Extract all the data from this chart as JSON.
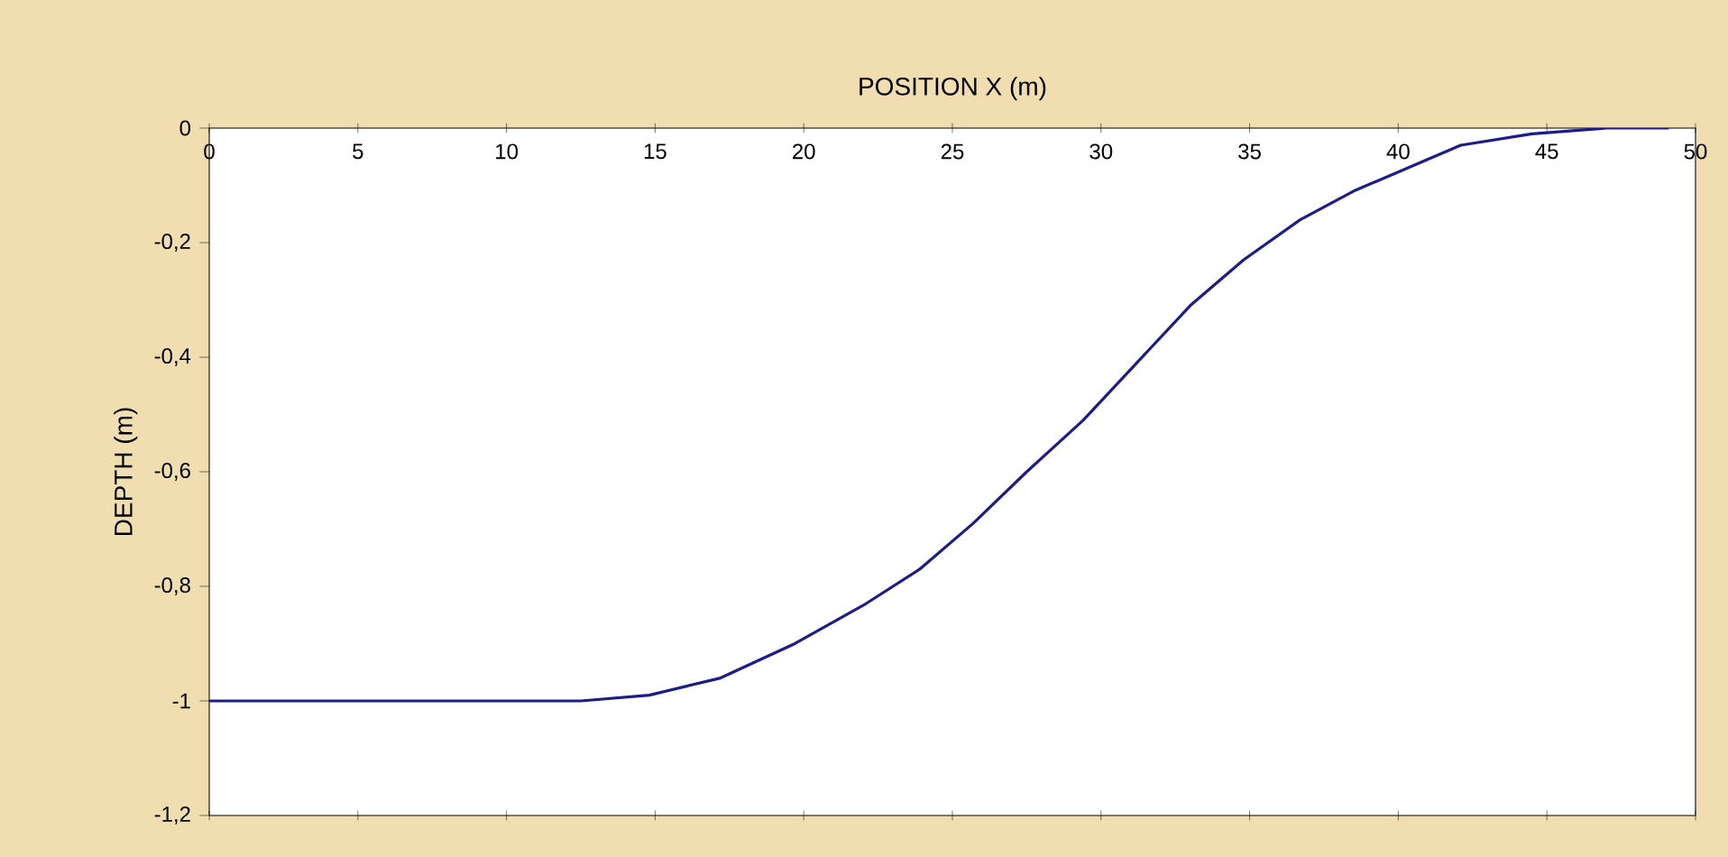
{
  "chart_data": {
    "type": "line",
    "xlabel": "POSITION X (m)",
    "ylabel": "DEPTH (m)",
    "x": [
      0,
      12.5,
      14.8,
      17.2,
      19.7,
      22.1,
      23.9,
      25.7,
      27.5,
      29.4,
      31.2,
      33,
      34.8,
      36.7,
      38.5,
      40.3,
      42.1,
      44.5,
      47,
      49.1
    ],
    "values": [
      -1,
      -1,
      -0.99,
      -0.96,
      -0.9,
      -0.83,
      -0.77,
      -0.69,
      -0.6,
      -0.51,
      -0.41,
      -0.31,
      -0.23,
      -0.16,
      -0.11,
      -0.07,
      -0.03,
      -0.01,
      0,
      0
    ],
    "color": "#1c1c8a",
    "xlim": [
      0,
      50
    ],
    "ylim": [
      -1.2,
      0
    ],
    "xticks": [
      0,
      5,
      10,
      15,
      20,
      25,
      30,
      35,
      40,
      45,
      50
    ],
    "yticks": [
      0,
      {
        "value": -0.2,
        "label": "-0,2"
      },
      {
        "value": -0.4,
        "label": "-0,4"
      },
      {
        "value": -0.6,
        "label": "-0,6"
      },
      {
        "value": -0.8,
        "label": "-0,8"
      },
      -1,
      {
        "value": -1.2,
        "label": "-1,2"
      }
    ]
  }
}
